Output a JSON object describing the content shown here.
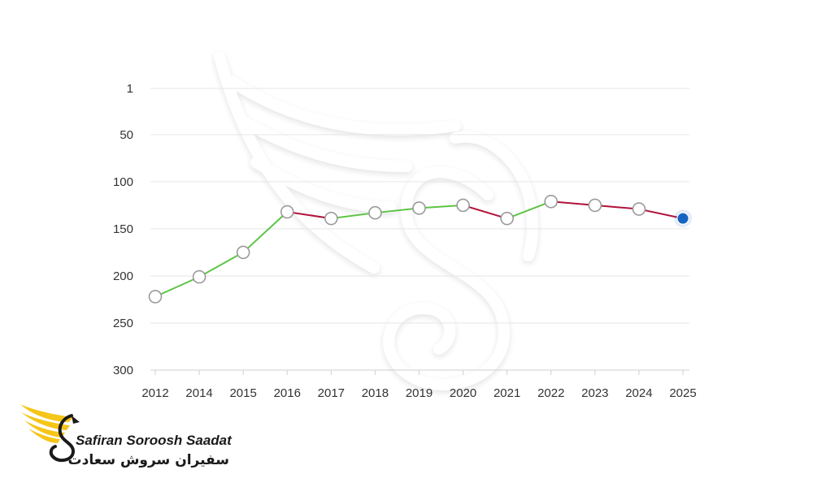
{
  "chart_data": {
    "type": "line",
    "x": [
      "2012",
      "2014",
      "2015",
      "2016",
      "2017",
      "2018",
      "2019",
      "2020",
      "2021",
      "2022",
      "2023",
      "2024",
      "2025"
    ],
    "values": [
      222,
      201,
      175,
      132,
      139,
      133,
      128,
      125,
      139,
      121,
      125,
      129,
      139
    ],
    "y_reversed": true,
    "ylim": [
      1,
      300
    ],
    "yticks": [
      1,
      50,
      100,
      150,
      200,
      250,
      300
    ],
    "grid": true,
    "colors": {
      "improving": "#5cc446",
      "declining": "#b0123a",
      "last_point": "#1565c0",
      "marker_stroke": "#9a9a9a"
    },
    "title": "",
    "xlabel": "",
    "ylabel": ""
  },
  "logo": {
    "name_en": "Safiran Soroosh Saadat",
    "name_fa": "سفیران سروش سعادت",
    "colors": {
      "wing": "#f5c518",
      "ink": "#1a1a1a"
    }
  }
}
